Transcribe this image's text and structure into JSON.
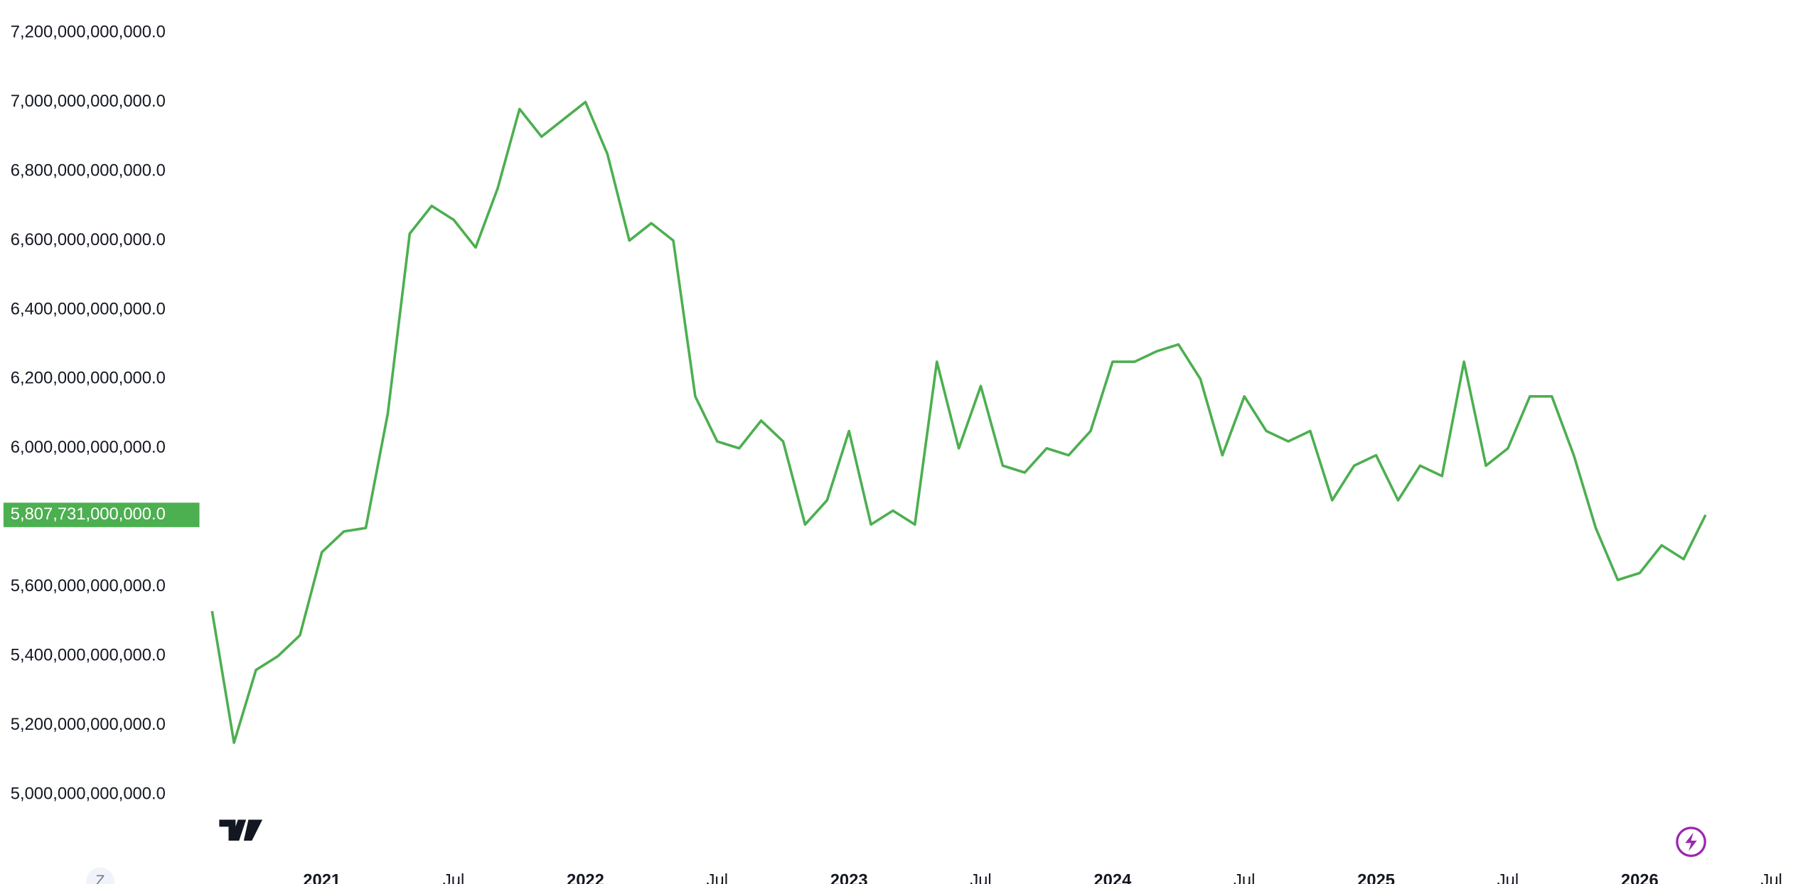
{
  "chart_data": {
    "type": "line",
    "x": [
      "2020-08",
      "2020-09",
      "2020-10",
      "2020-11",
      "2020-12",
      "2021-01",
      "2021-02",
      "2021-03",
      "2021-04",
      "2021-05",
      "2021-06",
      "2021-07",
      "2021-08",
      "2021-09",
      "2021-10",
      "2021-11",
      "2021-12",
      "2022-01",
      "2022-02",
      "2022-03",
      "2022-04",
      "2022-05",
      "2022-06",
      "2022-07",
      "2022-08",
      "2022-09",
      "2022-10",
      "2022-11",
      "2022-12",
      "2023-01",
      "2023-02",
      "2023-03",
      "2023-04",
      "2023-05",
      "2023-06",
      "2023-07",
      "2023-08",
      "2023-09",
      "2023-10",
      "2023-11",
      "2023-12",
      "2024-01",
      "2024-02",
      "2024-03",
      "2024-04",
      "2024-05",
      "2024-06",
      "2024-07",
      "2024-08",
      "2024-09",
      "2024-10",
      "2024-11",
      "2024-12",
      "2025-01",
      "2025-02",
      "2025-03",
      "2025-04",
      "2025-05",
      "2025-06",
      "2025-07",
      "2025-08",
      "2025-09",
      "2025-10",
      "2025-11",
      "2025-12",
      "2026-01",
      "2026-02",
      "2026-03",
      "2026-04"
    ],
    "series": [
      {
        "color": "#4caf50",
        "values": [
          5530000000000,
          5150000000000,
          5360000000000,
          5400000000000,
          5460000000000,
          5700000000000,
          5760000000000,
          5770000000000,
          6100000000000,
          6620000000000,
          6700000000000,
          6660000000000,
          6580000000000,
          6750000000000,
          6980000000000,
          6900000000000,
          6950000000000,
          7000000000000,
          6850000000000,
          6600000000000,
          6650000000000,
          6600000000000,
          6150000000000,
          6020000000000,
          6000000000000,
          6080000000000,
          6020000000000,
          5780000000000,
          5850000000000,
          6050000000000,
          5780000000000,
          5820000000000,
          5780000000000,
          6250000000000,
          6000000000000,
          6180000000000,
          5950000000000,
          5930000000000,
          6000000000000,
          5980000000000,
          6050000000000,
          6250000000000,
          6250000000000,
          6280000000000,
          6300000000000,
          6200000000000,
          5980000000000,
          6150000000000,
          6050000000000,
          6020000000000,
          6050000000000,
          5850000000000,
          5950000000000,
          5980000000000,
          5850000000000,
          5950000000000,
          5920000000000,
          6250000000000,
          5950000000000,
          6000000000000,
          6150000000000,
          6150000000000,
          5980000000000,
          5770000000000,
          5620000000000,
          5640000000000,
          5720000000000,
          5680000000000,
          5807731000000
        ]
      }
    ],
    "last_value": {
      "value": 5807731000000,
      "label": "5,807,731,000,000.0"
    },
    "xlim": [
      "2020-01",
      "2026-08"
    ],
    "xticks": [
      {
        "value": "2021-01",
        "label": "2021"
      },
      {
        "value": "2021-07",
        "label": "Jul"
      },
      {
        "value": "2022-01",
        "label": "2022"
      },
      {
        "value": "2022-07",
        "label": "Jul"
      },
      {
        "value": "2023-01",
        "label": "2023"
      },
      {
        "value": "2023-07",
        "label": "Jul"
      },
      {
        "value": "2024-01",
        "label": "2024"
      },
      {
        "value": "2024-07",
        "label": "Jul"
      },
      {
        "value": "2025-01",
        "label": "2025"
      },
      {
        "value": "2025-07",
        "label": "Jul"
      },
      {
        "value": "2026-01",
        "label": "2026"
      },
      {
        "value": "2026-07",
        "label": "Jul"
      }
    ],
    "ylim": [
      4820000000000,
      7294000000000
    ],
    "yticks": [
      {
        "value": 5000000000000,
        "label": "5,000,000,000,000.0"
      },
      {
        "value": 5200000000000,
        "label": "5,200,000,000,000.0"
      },
      {
        "value": 5400000000000,
        "label": "5,400,000,000,000.0"
      },
      {
        "value": 5600000000000,
        "label": "5,600,000,000,000.0"
      },
      {
        "value": 6000000000000,
        "label": "6,000,000,000,000.0"
      },
      {
        "value": 6200000000000,
        "label": "6,200,000,000,000.0"
      },
      {
        "value": 6400000000000,
        "label": "6,400,000,000,000.0"
      },
      {
        "value": 6600000000000,
        "label": "6,600,000,000,000.0"
      },
      {
        "value": 6800000000000,
        "label": "6,800,000,000,000.0"
      },
      {
        "value": 7000000000000,
        "label": "7,000,000,000,000.0"
      },
      {
        "value": 7200000000000,
        "label": "7,200,000,000,000.0"
      }
    ],
    "grid": false
  },
  "ui": {
    "z_button": "Z"
  }
}
